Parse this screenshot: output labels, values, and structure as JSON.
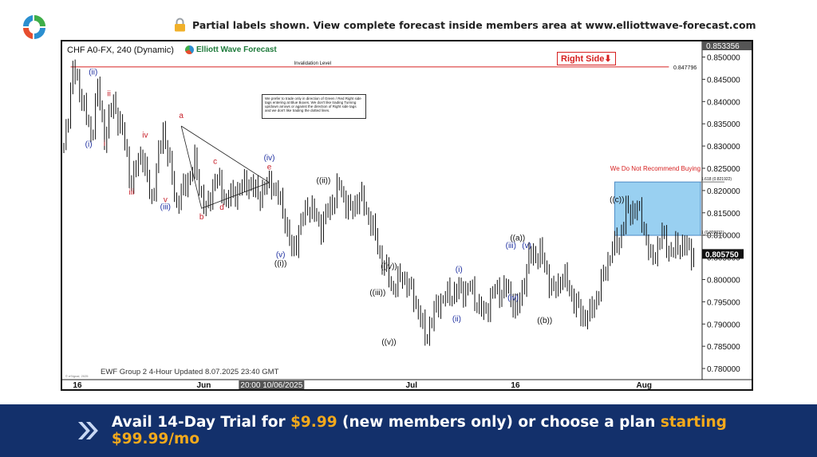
{
  "notice": {
    "text": "Partial labels shown. View complete forecast inside members area at www.elliottwave-forecast.com",
    "icon": "lock-icon"
  },
  "chart_header": {
    "symbol": "CHF A0-FX, 240 (Dynamic)",
    "brand": "Elliott Wave Forecast"
  },
  "right_side": "Right Side⬇",
  "invalidation_label": "Invalidation Level",
  "instructions": "We prefer to trade only in direction of Green / Red Right side tags entering at Blue Boxes. We don't like trading Turning up/down arrows or against the direction of Right side tags and we don't like trading the dotted lines.",
  "not_recommend": "We Do Not Recommend Buying",
  "updated": "EWF Group 2 4-Hour Updated 8.07.2025 23:40 GMT",
  "watermark": "© eSignal, 2025",
  "banner": {
    "prefix": "Avail 14-Day Trial for ",
    "price": "$9.99",
    "middle": " (new members only) or choose a plan ",
    "starting": "starting $99.99/mo"
  },
  "colors": {
    "brand_blue": "#13306b",
    "highlight": "#f3a91c",
    "bull_label": "#1e2fa0",
    "bear_label": "#c8202a",
    "blue_box": "#8fcbf0"
  },
  "chart_data": {
    "type": "candlestick",
    "symbol": "CHF A0-FX",
    "interval": "240",
    "ylim": [
      0.7775,
      0.8535
    ],
    "price_ticks": [
      0.85,
      0.845,
      0.84,
      0.835,
      0.83,
      0.825,
      0.82,
      0.815,
      0.81,
      0.805,
      0.8,
      0.795,
      0.79,
      0.785,
      0.78
    ],
    "price_tick_labels": [
      "0.850000",
      "0.845000",
      "0.840000",
      "0.835000",
      "0.830000",
      "0.825000",
      "0.820000",
      "0.815000",
      "0.810000",
      "0.805000",
      "0.800000",
      "0.795000",
      "0.790000",
      "0.785000",
      "0.780000"
    ],
    "current_price": "0.805750",
    "top_price": "0.853356",
    "invalidation_level": 0.847796,
    "invalidation_text": "0.847796",
    "x_labels": [
      {
        "text": "16",
        "bar": 6
      },
      {
        "text": "Jun",
        "bar": 62
      },
      {
        "text": "20:00 10/06/2025",
        "bar": 92,
        "cursor": true
      },
      {
        "text": "Jul",
        "bar": 154
      },
      {
        "text": "16",
        "bar": 200
      },
      {
        "text": "Aug",
        "bar": 257
      }
    ],
    "blue_box": {
      "bar_start": 244,
      "bar_end": 282,
      "low": 0.809931,
      "high": 0.821922,
      "low_text": "1 (0.809931)",
      "high_text": "1.618 (0.821922)"
    },
    "pivots": [
      [
        0,
        0.829
      ],
      [
        4,
        0.847
      ],
      [
        7,
        0.843
      ],
      [
        12,
        0.832
      ],
      [
        15,
        0.843
      ],
      [
        18,
        0.832
      ],
      [
        22,
        0.84
      ],
      [
        27,
        0.831
      ],
      [
        30,
        0.821
      ],
      [
        34,
        0.829
      ],
      [
        39,
        0.818
      ],
      [
        44,
        0.834
      ],
      [
        50,
        0.817
      ],
      [
        58,
        0.826
      ],
      [
        63,
        0.815
      ],
      [
        67,
        0.823
      ],
      [
        72,
        0.818
      ],
      [
        82,
        0.822
      ],
      [
        86,
        0.819
      ],
      [
        92,
        0.822
      ],
      [
        97,
        0.816
      ],
      [
        101,
        0.806
      ],
      [
        108,
        0.817
      ],
      [
        114,
        0.812
      ],
      [
        122,
        0.821
      ],
      [
        127,
        0.815
      ],
      [
        131,
        0.819
      ],
      [
        136,
        0.813
      ],
      [
        141,
        0.804
      ],
      [
        146,
        0.798
      ],
      [
        150,
        0.801
      ],
      [
        156,
        0.795
      ],
      [
        160,
        0.787
      ],
      [
        166,
        0.795
      ],
      [
        172,
        0.797
      ],
      [
        180,
        0.798
      ],
      [
        186,
        0.792
      ],
      [
        190,
        0.797
      ],
      [
        196,
        0.798
      ],
      [
        201,
        0.793
      ],
      [
        206,
        0.805
      ],
      [
        211,
        0.806
      ],
      [
        217,
        0.797
      ],
      [
        221,
        0.801
      ],
      [
        229,
        0.792
      ],
      [
        233,
        0.792
      ],
      [
        238,
        0.799
      ],
      [
        242,
        0.806
      ],
      [
        246,
        0.809
      ],
      [
        249,
        0.815
      ],
      [
        253,
        0.816
      ],
      [
        256,
        0.814
      ],
      [
        260,
        0.804
      ],
      [
        265,
        0.81
      ],
      [
        269,
        0.806
      ],
      [
        273,
        0.808
      ],
      [
        279,
        0.806
      ]
    ],
    "wave_labels": [
      {
        "text": "(i)",
        "bar": 11,
        "price": 0.8298,
        "color": "blue"
      },
      {
        "text": "(ii)",
        "bar": 13,
        "price": 0.8461,
        "color": "blue"
      },
      {
        "text": "i",
        "bar": 18,
        "price": 0.83,
        "color": "red"
      },
      {
        "text": "ii",
        "bar": 20,
        "price": 0.8412,
        "color": "red"
      },
      {
        "text": "iii",
        "bar": 30,
        "price": 0.8191,
        "color": "red"
      },
      {
        "text": "iv",
        "bar": 36,
        "price": 0.8319,
        "color": "red"
      },
      {
        "text": "v",
        "bar": 45,
        "price": 0.8174,
        "color": "red"
      },
      {
        "text": "(iii)",
        "bar": 45,
        "price": 0.8158,
        "color": "blue"
      },
      {
        "text": "a",
        "bar": 52,
        "price": 0.8363,
        "color": "red"
      },
      {
        "text": "b",
        "bar": 61,
        "price": 0.8135,
        "color": "red"
      },
      {
        "text": "c",
        "bar": 67,
        "price": 0.826,
        "color": "red"
      },
      {
        "text": "d",
        "bar": 70,
        "price": 0.8157,
        "color": "red"
      },
      {
        "text": "(iv)",
        "bar": 91,
        "price": 0.8268,
        "color": "blue"
      },
      {
        "text": "e",
        "bar": 91,
        "price": 0.8247,
        "color": "red"
      },
      {
        "text": "(v)",
        "bar": 96,
        "price": 0.805,
        "color": "blue"
      },
      {
        "text": "((i))",
        "bar": 96,
        "price": 0.803,
        "color": "black"
      },
      {
        "text": "((ii))",
        "bar": 115,
        "price": 0.8217,
        "color": "black"
      },
      {
        "text": "((iii))",
        "bar": 139,
        "price": 0.7965,
        "color": "black"
      },
      {
        "text": "((iv))",
        "bar": 144,
        "price": 0.8024,
        "color": "black"
      },
      {
        "text": "((v))",
        "bar": 144,
        "price": 0.7854,
        "color": "black"
      },
      {
        "text": "(i)",
        "bar": 175,
        "price": 0.8017,
        "color": "blue"
      },
      {
        "text": "(ii)",
        "bar": 174,
        "price": 0.7906,
        "color": "blue"
      },
      {
        "text": "((a))",
        "bar": 201,
        "price": 0.8088,
        "color": "black"
      },
      {
        "text": "(iii)",
        "bar": 198,
        "price": 0.8071,
        "color": "blue"
      },
      {
        "text": "(v)",
        "bar": 205,
        "price": 0.8071,
        "color": "blue"
      },
      {
        "text": "(iv)",
        "bar": 199,
        "price": 0.7953,
        "color": "blue"
      },
      {
        "text": "((b))",
        "bar": 213,
        "price": 0.7902,
        "color": "black"
      },
      {
        "text": "((c))",
        "bar": 245,
        "price": 0.8174,
        "color": "black"
      }
    ],
    "triangle": [
      [
        52,
        0.8345
      ],
      [
        91,
        0.8218
      ],
      [
        61,
        0.816
      ]
    ]
  }
}
